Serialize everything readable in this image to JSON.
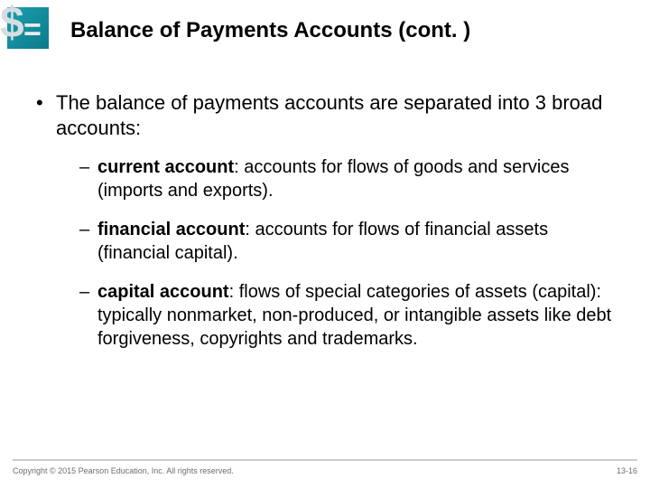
{
  "title": "Balance of Payments Accounts (cont. )",
  "mainBullet": "The balance of payments accounts are separated into 3 broad accounts:",
  "subs": [
    {
      "term": "current account",
      "rest": ":  accounts for flows of goods and services (imports and exports)."
    },
    {
      "term": "financial account",
      "rest": ":  accounts for flows of financial assets (financial capital)."
    },
    {
      "term": "capital account",
      "rest": ":  flows of special categories of assets (capital):  typically nonmarket, non-produced, or intangible assets like debt forgiveness, copyrights and trademarks."
    }
  ],
  "footer": {
    "copyright": "Copyright © 2015 Pearson Education, Inc. All rights reserved.",
    "page": "13-16"
  },
  "colors": {
    "iconTeal": "#1a9fb0",
    "footerBorder": "#c8cdd0",
    "footerText": "#6a6e72"
  }
}
